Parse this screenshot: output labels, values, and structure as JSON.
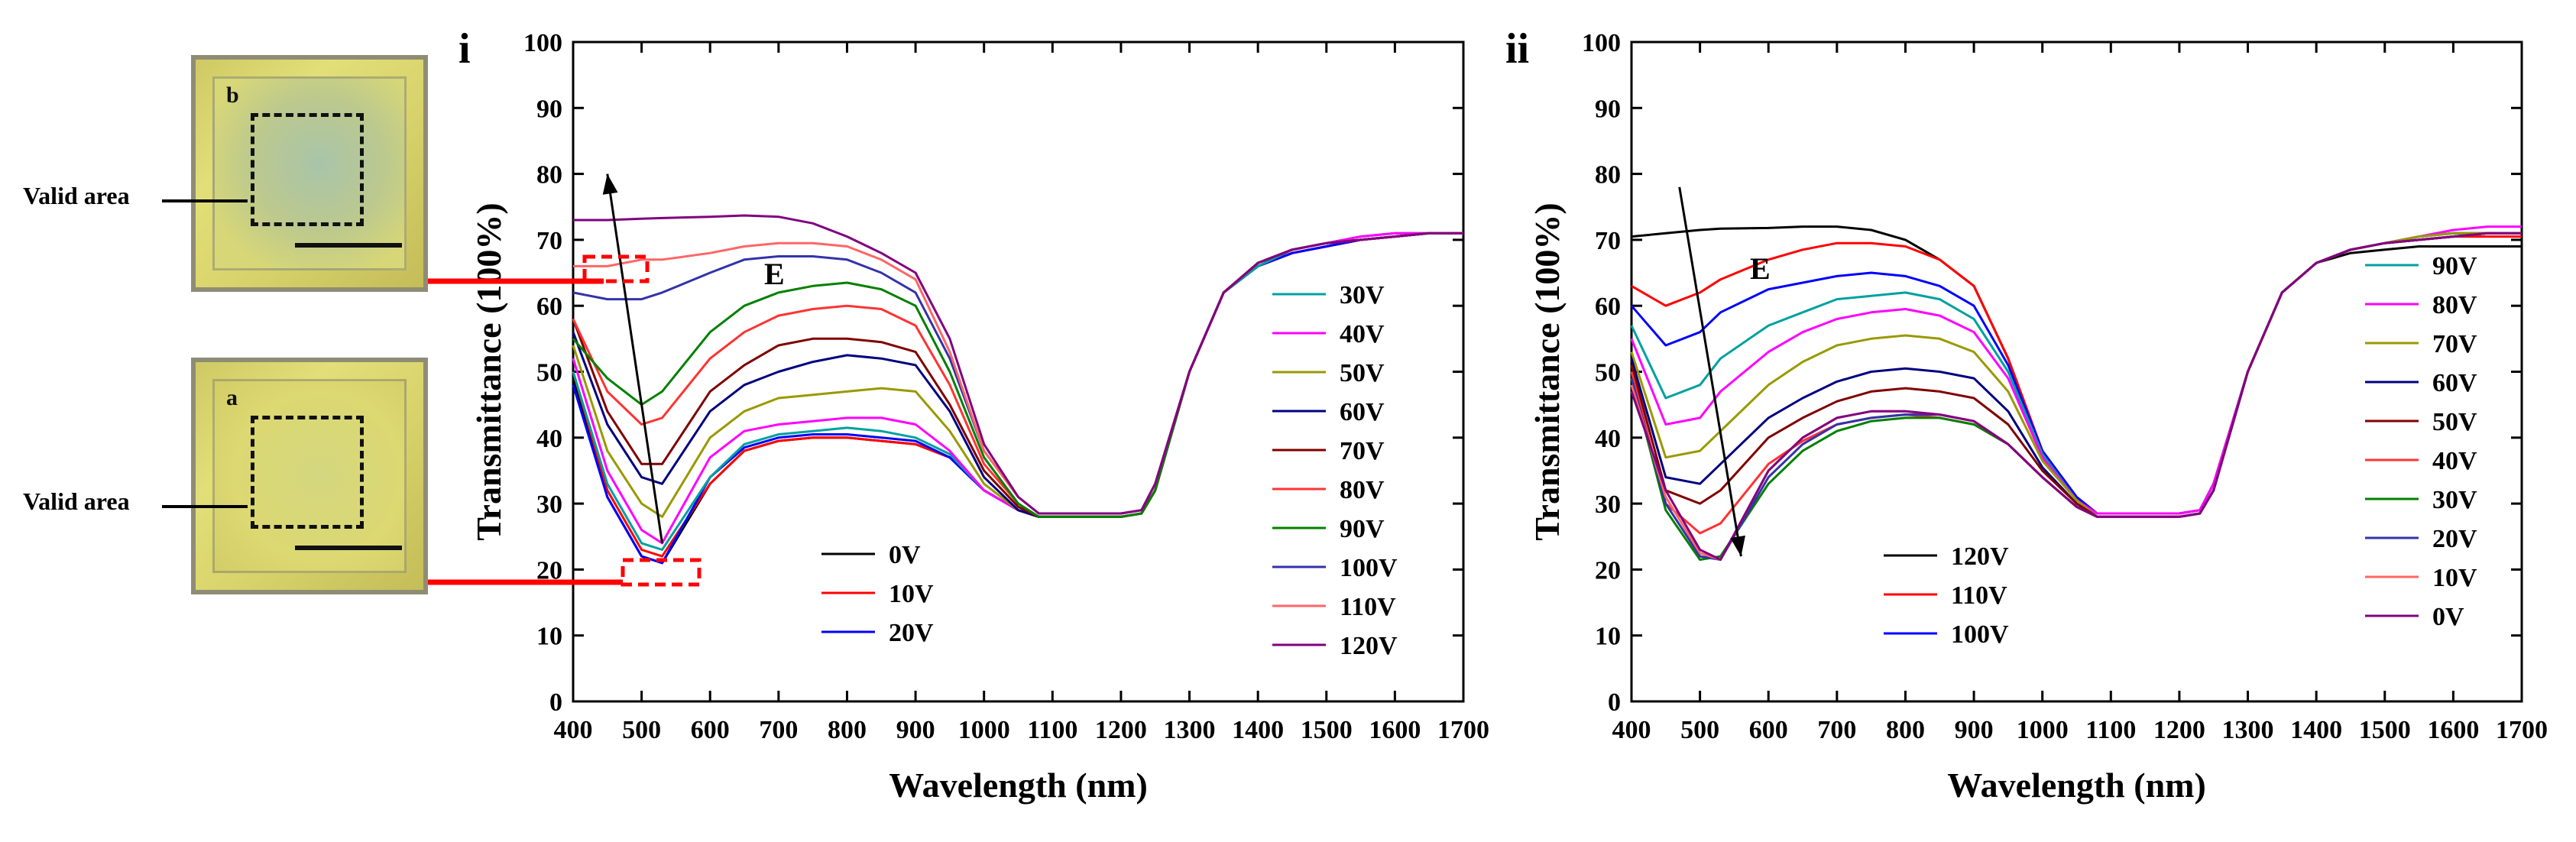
{
  "photos": {
    "top_letter": "b",
    "bottom_letter": "a",
    "valid_label": "Valid area"
  },
  "chart_data": [
    {
      "type": "line",
      "panel_label": "i",
      "xlabel": "Wavelength (nm)",
      "ylabel": "Transmittance (100%)",
      "xlim": [
        400,
        1700
      ],
      "ylim": [
        0,
        100
      ],
      "xticks": [
        "400",
        "500",
        "600",
        "700",
        "800",
        "900",
        "1000",
        "1100",
        "1200",
        "1300",
        "1400",
        "1500",
        "1600",
        "1700"
      ],
      "yticks": [
        "0",
        "10",
        "20",
        "30",
        "40",
        "50",
        "60",
        "70",
        "80",
        "90",
        "100"
      ],
      "arrow_label": "E",
      "arrow": {
        "from": [
          530,
          24
        ],
        "to": [
          450,
          80
        ]
      },
      "x": [
        400,
        450,
        500,
        530,
        600,
        650,
        700,
        750,
        800,
        850,
        900,
        950,
        1000,
        1050,
        1080,
        1100,
        1150,
        1200,
        1230,
        1250,
        1300,
        1350,
        1400,
        1450,
        1500,
        1550,
        1600,
        1650,
        1700
      ],
      "series": [
        {
          "name": "0V",
          "color": "#000000",
          "values": [
            49,
            31,
            22,
            21,
            33,
            38,
            39.5,
            40,
            40,
            39.5,
            39,
            37,
            32,
            29,
            28,
            28,
            28,
            28,
            28.5,
            32,
            50,
            62,
            66,
            68,
            69,
            70,
            70.5,
            71,
            71
          ]
        },
        {
          "name": "10V",
          "color": "#ff0000",
          "values": [
            50,
            32,
            23,
            22,
            33,
            38,
            39.5,
            40,
            40,
            39.5,
            39,
            37,
            32,
            29,
            28,
            28,
            28,
            28,
            28.5,
            32,
            50,
            62,
            66,
            68,
            69,
            70,
            70.5,
            71,
            71
          ]
        },
        {
          "name": "20V",
          "color": "#0000ff",
          "values": [
            48,
            31,
            22,
            21,
            34,
            38.5,
            40,
            40.5,
            40.5,
            40,
            39.5,
            37,
            32,
            29,
            28,
            28,
            28,
            28,
            28.5,
            32,
            50,
            62,
            66,
            68,
            69,
            70,
            70.5,
            71,
            71
          ]
        },
        {
          "name": "30V",
          "color": "#00a0a0",
          "values": [
            50,
            33,
            24,
            23,
            34,
            39,
            40.5,
            41,
            41.5,
            41,
            40,
            37.5,
            32,
            29,
            28,
            28,
            28,
            28,
            28.5,
            32,
            50,
            62,
            66,
            68.5,
            69.5,
            70.5,
            71,
            71,
            71
          ]
        },
        {
          "name": "40V",
          "color": "#ff00ff",
          "values": [
            52,
            35,
            26,
            24,
            37,
            41,
            42,
            42.5,
            43,
            43,
            42,
            38,
            32,
            29,
            28,
            28,
            28,
            28,
            28.5,
            32,
            50,
            62,
            66.5,
            68.5,
            69.5,
            70.5,
            71,
            71,
            71
          ]
        },
        {
          "name": "50V",
          "color": "#999900",
          "values": [
            54,
            38,
            30,
            28,
            40,
            44,
            46,
            46.5,
            47,
            47.5,
            47,
            41,
            33,
            29,
            28,
            28,
            28,
            28,
            28.5,
            32,
            50,
            62,
            66.5,
            68.5,
            69.5,
            70,
            70.5,
            71,
            71
          ]
        },
        {
          "name": "60V",
          "color": "#000080",
          "values": [
            56,
            42,
            34,
            33,
            44,
            48,
            50,
            51.5,
            52.5,
            52,
            51,
            44,
            34,
            29,
            28,
            28,
            28,
            28,
            28.5,
            32,
            50,
            62,
            66.5,
            68.5,
            69.5,
            70,
            70.5,
            71,
            71
          ]
        },
        {
          "name": "70V",
          "color": "#800000",
          "values": [
            58,
            44,
            36,
            36,
            47,
            51,
            54,
            55,
            55,
            54.5,
            53,
            45,
            35,
            29.5,
            28,
            28,
            28,
            28,
            28.5,
            32,
            50,
            62,
            66.5,
            68.5,
            69.5,
            70,
            70.5,
            71,
            71
          ]
        },
        {
          "name": "80V",
          "color": "#ff3333",
          "values": [
            58,
            47,
            42,
            43,
            52,
            56,
            58.5,
            59.5,
            60,
            59.5,
            57,
            48,
            36,
            30,
            28,
            28,
            28,
            28,
            28.5,
            32,
            50,
            62,
            66.5,
            68.5,
            69.5,
            70,
            70.5,
            71,
            71
          ]
        },
        {
          "name": "90V",
          "color": "#008000",
          "values": [
            55,
            49,
            45,
            47,
            56,
            60,
            62,
            63,
            63.5,
            62.5,
            60,
            50,
            37,
            30,
            28,
            28,
            28,
            28,
            28.5,
            32,
            50,
            62,
            66.5,
            68.5,
            69.5,
            70,
            70.5,
            71,
            71
          ]
        },
        {
          "name": "100V",
          "color": "#3333aa",
          "values": [
            62,
            61,
            61,
            62,
            65,
            67,
            67.5,
            67.5,
            67,
            65,
            62,
            52,
            38,
            31,
            28.5,
            28.5,
            28.5,
            28.5,
            29,
            33,
            50,
            62,
            66.5,
            68.5,
            69.5,
            70,
            70.5,
            71,
            71
          ]
        },
        {
          "name": "110V",
          "color": "#ff6666",
          "values": [
            66,
            66,
            67,
            67,
            68,
            69,
            69.5,
            69.5,
            69,
            67,
            64,
            53,
            38,
            31,
            28.5,
            28.5,
            28.5,
            28.5,
            29,
            33,
            50,
            62,
            66.5,
            68.5,
            69.5,
            70,
            70.5,
            71,
            71
          ]
        },
        {
          "name": "120V",
          "color": "#800080",
          "values": [
            73,
            73,
            73.2,
            73.3,
            73.5,
            73.7,
            73.5,
            72.5,
            70.5,
            68,
            65,
            55,
            39,
            31,
            28.5,
            28.5,
            28.5,
            28.5,
            29,
            33,
            50,
            62,
            66.5,
            68.5,
            69.5,
            70,
            70.5,
            71,
            71
          ]
        }
      ]
    },
    {
      "type": "line",
      "panel_label": "ii",
      "xlabel": "Wavelength (nm)",
      "ylabel": "Transmittance (100%)",
      "xlim": [
        400,
        1700
      ],
      "ylim": [
        0,
        100
      ],
      "xticks": [
        "400",
        "500",
        "600",
        "700",
        "800",
        "900",
        "1000",
        "1100",
        "1200",
        "1300",
        "1400",
        "1500",
        "1600",
        "1700"
      ],
      "yticks": [
        "0",
        "10",
        "20",
        "30",
        "40",
        "50",
        "60",
        "70",
        "80",
        "90",
        "100"
      ],
      "arrow_label": "E",
      "arrow": {
        "from": [
          470,
          78
        ],
        "to": [
          560,
          22
        ]
      },
      "x": [
        400,
        450,
        500,
        530,
        600,
        650,
        700,
        750,
        800,
        850,
        900,
        950,
        1000,
        1050,
        1080,
        1100,
        1150,
        1200,
        1230,
        1250,
        1300,
        1350,
        1400,
        1450,
        1500,
        1550,
        1600,
        1650,
        1700
      ],
      "series": [
        {
          "name": "120V",
          "color": "#000000",
          "values": [
            70.5,
            71,
            71.5,
            71.7,
            71.8,
            72,
            72,
            71.5,
            70,
            67,
            63,
            52,
            38,
            31,
            28.5,
            28.5,
            28.5,
            28.5,
            29,
            33,
            50,
            62,
            66.5,
            68,
            68.5,
            69,
            69,
            69,
            69
          ]
        },
        {
          "name": "110V",
          "color": "#ff0000",
          "values": [
            63,
            60,
            62,
            64,
            67,
            68.5,
            69.5,
            69.5,
            69,
            67,
            63,
            52,
            38,
            31,
            28.5,
            28.5,
            28.5,
            28.5,
            29,
            33,
            50,
            62,
            66.5,
            68.5,
            69.5,
            70,
            70.5,
            70.5,
            70.5
          ]
        },
        {
          "name": "100V",
          "color": "#0000ff",
          "values": [
            60,
            54,
            56,
            59,
            62.5,
            63.5,
            64.5,
            65,
            64.5,
            63,
            60,
            51,
            38,
            31,
            28.5,
            28.5,
            28.5,
            28.5,
            29,
            33,
            50,
            62,
            66.5,
            68.5,
            69.5,
            70.5,
            71,
            71,
            71
          ]
        },
        {
          "name": "90V",
          "color": "#00a0a0",
          "values": [
            57,
            46,
            48,
            52,
            57,
            59,
            61,
            61.5,
            62,
            61,
            58,
            50,
            37.5,
            30.5,
            28.5,
            28.5,
            28.5,
            28.5,
            29,
            33,
            50,
            62,
            66.5,
            68.5,
            69.5,
            70.5,
            71,
            71,
            71
          ]
        },
        {
          "name": "80V",
          "color": "#ff00ff",
          "values": [
            55,
            42,
            43,
            47,
            53,
            56,
            58,
            59,
            59.5,
            58.5,
            56,
            49,
            37,
            30.5,
            28.5,
            28.5,
            28.5,
            28.5,
            29,
            33,
            50,
            62,
            66.5,
            68.5,
            69.5,
            70.5,
            71.5,
            72,
            72
          ]
        },
        {
          "name": "70V",
          "color": "#999900",
          "values": [
            53,
            37,
            38,
            41,
            48,
            51.5,
            54,
            55,
            55.5,
            55,
            53,
            47,
            36.5,
            30.5,
            28,
            28,
            28,
            28,
            28.5,
            32,
            50,
            62,
            66.5,
            68.5,
            69.5,
            70.5,
            71,
            71,
            71
          ]
        },
        {
          "name": "60V",
          "color": "#000080",
          "values": [
            52,
            34,
            33,
            36,
            43,
            46,
            48.5,
            50,
            50.5,
            50,
            49,
            44,
            35.5,
            30,
            28,
            28,
            28,
            28,
            28.5,
            32,
            50,
            62,
            66.5,
            68.5,
            69.5,
            70,
            70.5,
            71,
            71
          ]
        },
        {
          "name": "50V",
          "color": "#800000",
          "values": [
            51,
            32,
            30,
            32,
            40,
            43,
            45.5,
            47,
            47.5,
            47,
            46,
            42,
            35,
            30,
            28,
            28,
            28,
            28,
            28.5,
            32,
            50,
            62,
            66.5,
            68.5,
            69.5,
            70,
            70.5,
            71,
            71
          ]
        },
        {
          "name": "40V",
          "color": "#ff3333",
          "values": [
            50,
            30,
            25.5,
            27,
            36,
            39.5,
            42,
            43,
            43.5,
            43,
            42,
            39,
            34,
            29.5,
            28,
            28,
            28,
            28,
            28.5,
            32,
            50,
            62,
            66.5,
            68.5,
            69.5,
            70,
            70.5,
            71,
            71
          ]
        },
        {
          "name": "30V",
          "color": "#008000",
          "values": [
            49,
            29,
            21.5,
            22,
            33,
            38,
            41,
            42.5,
            43,
            43,
            42,
            39,
            34,
            29.5,
            28,
            28,
            28,
            28,
            28.5,
            32,
            50,
            62,
            66.5,
            68.5,
            69.5,
            70,
            70.5,
            71,
            71
          ]
        },
        {
          "name": "20V",
          "color": "#3333aa",
          "values": [
            49,
            30,
            22,
            21.5,
            34,
            39,
            42,
            43,
            43.5,
            43.5,
            42.5,
            39,
            34,
            29.5,
            28,
            28,
            28,
            28,
            28.5,
            32,
            50,
            62,
            66.5,
            68.5,
            69.5,
            70,
            70.5,
            71,
            71
          ]
        },
        {
          "name": "10V",
          "color": "#ff6666",
          "values": [
            48,
            31,
            22.5,
            21.5,
            35,
            40,
            43,
            44,
            44,
            43.5,
            42.5,
            39,
            34,
            29.5,
            28,
            28,
            28,
            28,
            28.5,
            32,
            50,
            62,
            66.5,
            68.5,
            69.5,
            70,
            70.5,
            71,
            71
          ]
        },
        {
          "name": "0V",
          "color": "#800080",
          "values": [
            47,
            32,
            23,
            21.5,
            35,
            40,
            43,
            44,
            44,
            43.5,
            42.5,
            39,
            34,
            29.5,
            28,
            28,
            28,
            28,
            28.5,
            32,
            50,
            62,
            66.5,
            68.5,
            69.5,
            70,
            70.5,
            71,
            71
          ]
        }
      ]
    }
  ]
}
